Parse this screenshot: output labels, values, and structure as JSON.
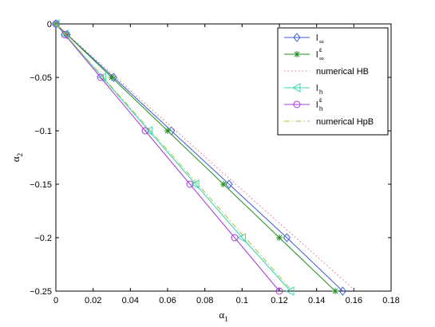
{
  "chart_data": {
    "type": "line",
    "xlabel": "α",
    "xlabel_sub": "1",
    "ylabel": "α",
    "ylabel_sub": "2",
    "xlim": [
      0,
      0.18
    ],
    "ylim": [
      -0.25,
      0
    ],
    "x_ticks": [
      0,
      0.02,
      0.04,
      0.06,
      0.08,
      0.1,
      0.12,
      0.14,
      0.16,
      0.18
    ],
    "x_tick_labels": [
      "0",
      "0.02",
      "0.04",
      "0.06",
      "0.08",
      "0.1",
      "0.12",
      "0.14",
      "0.16",
      "0.18"
    ],
    "y_ticks": [
      0,
      -0.05,
      -0.1,
      -0.15,
      -0.2,
      -0.25
    ],
    "y_tick_labels": [
      "0",
      "−0.05",
      "−0.1",
      "−0.15",
      "−0.2",
      "−0.25"
    ],
    "grid": false,
    "legend_position": "top-right",
    "series": [
      {
        "name": "l",
        "name_sub": "∞",
        "name_sup": "",
        "color": "#3b5bdb",
        "dash": "",
        "marker": "diamond",
        "points": [
          [
            0,
            0
          ],
          [
            0.006,
            -0.01
          ],
          [
            0.031,
            -0.05
          ],
          [
            0.062,
            -0.1
          ],
          [
            0.093,
            -0.15
          ],
          [
            0.124,
            -0.2
          ],
          [
            0.154,
            -0.25
          ]
        ]
      },
      {
        "name": "l",
        "name_sub": "∞",
        "name_sup": "ε",
        "color": "#1f8f1f",
        "dash": "",
        "marker": "asterisk",
        "points": [
          [
            0,
            0
          ],
          [
            0.006,
            -0.01
          ],
          [
            0.03,
            -0.05
          ],
          [
            0.06,
            -0.1
          ],
          [
            0.09,
            -0.15
          ],
          [
            0.12,
            -0.2
          ],
          [
            0.15,
            -0.25
          ]
        ]
      },
      {
        "name": "numerical HB",
        "name_sub": "",
        "name_sup": "",
        "color": "#e06c8c",
        "dash": "1.5,3",
        "marker": "none",
        "points": [
          [
            0,
            0
          ],
          [
            0.161,
            -0.25
          ]
        ]
      },
      {
        "name": "l",
        "name_sub": "h",
        "name_sup": "",
        "color": "#35d4b4",
        "dash": "",
        "marker": "triangle-left",
        "points": [
          [
            0,
            0
          ],
          [
            0.005,
            -0.01
          ],
          [
            0.025,
            -0.05
          ],
          [
            0.05,
            -0.1
          ],
          [
            0.075,
            -0.15
          ],
          [
            0.1,
            -0.2
          ],
          [
            0.126,
            -0.25
          ]
        ]
      },
      {
        "name": "l",
        "name_sub": "h",
        "name_sup": "ε",
        "color": "#a43cd8",
        "dash": "",
        "marker": "circle",
        "points": [
          [
            0,
            0
          ],
          [
            0.0048,
            -0.01
          ],
          [
            0.024,
            -0.05
          ],
          [
            0.048,
            -0.1
          ],
          [
            0.072,
            -0.15
          ],
          [
            0.096,
            -0.2
          ],
          [
            0.12,
            -0.25
          ]
        ]
      },
      {
        "name": "numerical HpB",
        "name_sub": "",
        "name_sup": "",
        "color": "#a8c43a",
        "dash": "7,3,1.5,3",
        "marker": "none",
        "points": [
          [
            0,
            0
          ],
          [
            0.127,
            -0.25
          ]
        ]
      }
    ]
  }
}
